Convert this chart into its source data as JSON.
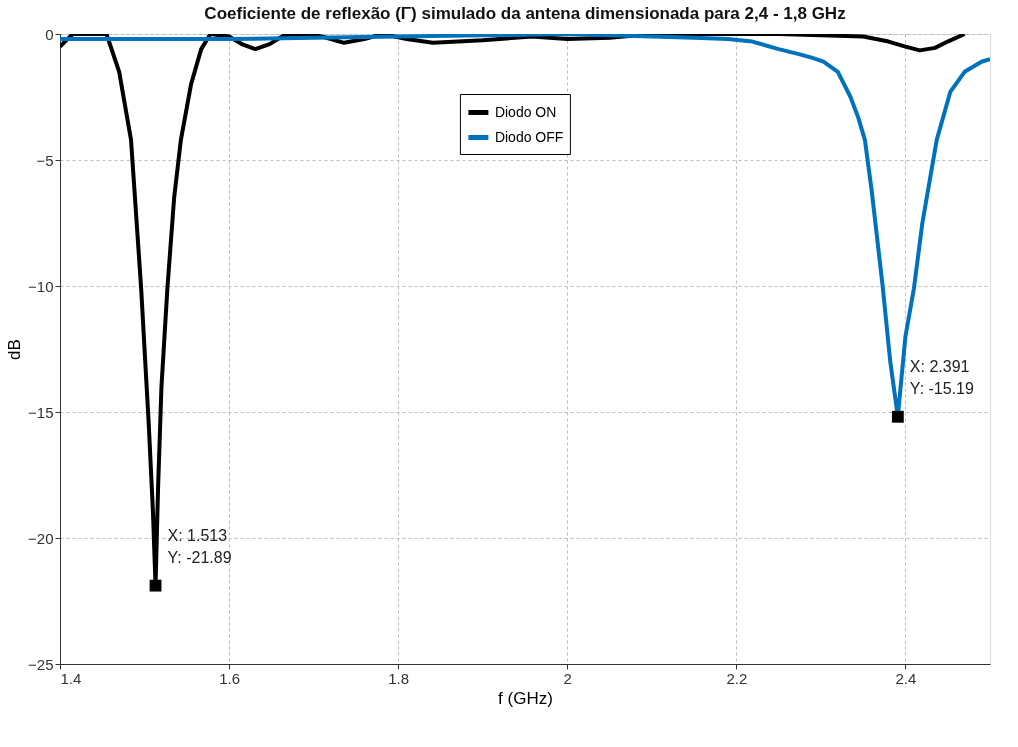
{
  "chart_data": {
    "type": "line",
    "title": "Coeficiente de reflexão (Γ) simulado da antena dimensionada para 2,4 - 1,8 GHz",
    "xlabel": "f (GHz)",
    "ylabel": "dB",
    "xlim": [
      1.4,
      2.5
    ],
    "xticks": [
      1.4,
      1.6,
      1.8,
      2,
      2.2,
      2.4
    ],
    "ylim": [
      -25,
      0
    ],
    "yticks": [
      -25,
      -20,
      -15,
      -10,
      -5,
      0
    ],
    "grid": true,
    "legend": "top",
    "marker": "none",
    "line_style": "solid",
    "series": [
      {
        "name": "Diodo ON",
        "color": "#000000",
        "x": [
          1.4,
          1.415,
          1.435,
          1.455,
          1.47,
          1.484,
          1.496,
          1.505,
          1.51,
          1.513,
          1.516,
          1.52,
          1.527,
          1.535,
          1.543,
          1.555,
          1.567,
          1.578,
          1.6,
          1.615,
          1.631,
          1.648,
          1.665,
          1.683,
          1.71,
          1.736,
          1.76,
          1.782,
          1.81,
          1.841,
          1.9,
          1.958,
          2.0,
          2.05,
          2.1,
          2.15,
          2.2,
          2.25,
          2.3,
          2.35,
          2.38,
          2.4,
          2.417,
          2.435,
          2.45,
          2.47
        ],
        "values": [
          -0.5,
          0,
          0,
          0,
          -1.5,
          -4.2,
          -10.1,
          -15.5,
          -19,
          -21.89,
          -18,
          -14,
          -10.1,
          -6.5,
          -4.2,
          -2,
          -0.6,
          0,
          -0.1,
          -0.4,
          -0.6,
          -0.4,
          -0.05,
          0,
          -0.1,
          -0.35,
          -0.2,
          0,
          -0.2,
          -0.35,
          -0.25,
          -0.1,
          -0.2,
          -0.15,
          0,
          0,
          0,
          0,
          -0.05,
          -0.1,
          -0.3,
          -0.5,
          -0.65,
          -0.55,
          -0.3,
          0
        ]
      },
      {
        "name": "Diodo OFF",
        "color": "#0072bd",
        "x": [
          1.4,
          1.5,
          1.6,
          1.7,
          1.8,
          1.9,
          2.0,
          2.1,
          2.15,
          2.19,
          2.219,
          2.25,
          2.274,
          2.29,
          2.303,
          2.32,
          2.335,
          2.344,
          2.352,
          2.36,
          2.373,
          2.382,
          2.391,
          2.394,
          2.4,
          2.41,
          2.42,
          2.437,
          2.453,
          2.47,
          2.49,
          2.5
        ],
        "values": [
          -0.2,
          -0.2,
          -0.2,
          -0.15,
          -0.1,
          -0.05,
          0,
          -0.1,
          -0.15,
          -0.2,
          -0.3,
          -0.6,
          -0.8,
          -0.95,
          -1.1,
          -1.5,
          -2.5,
          -3.3,
          -4.2,
          -6.2,
          -10,
          -13,
          -15.19,
          -14.1,
          -12,
          -10.1,
          -7.5,
          -4.2,
          -2.3,
          -1.5,
          -1.1,
          -1.0
        ]
      }
    ],
    "annotations": [
      {
        "text": "X: 1.513\nY: -21.89",
        "x": 1.513,
        "y": -21.89
      },
      {
        "text": "X: 2.391\nY: -15.19",
        "x": 2.391,
        "y": -15.19
      }
    ]
  }
}
